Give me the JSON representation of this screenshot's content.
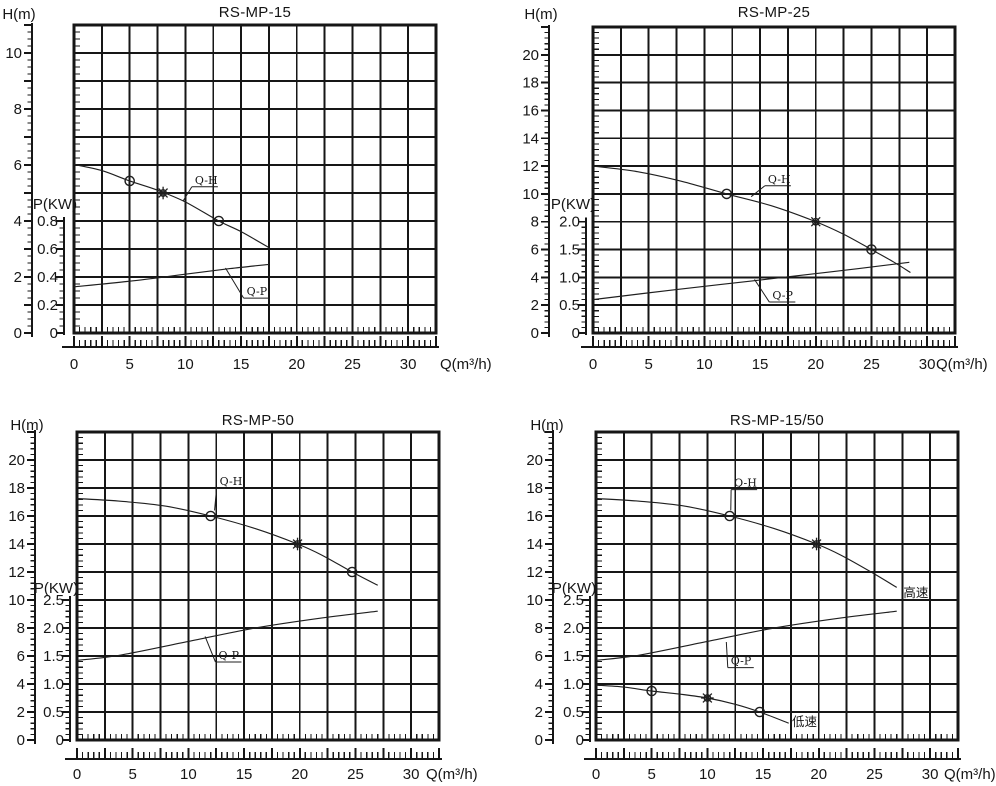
{
  "background": "#ffffff",
  "ink_color": "#161616",
  "curve_color": "#1f1f1f",
  "chart_data": [
    {
      "type": "line",
      "title": "RS-MP-15",
      "x_axis": {
        "label": "Q(m³/h)",
        "min": 0,
        "max": 32.5,
        "grid_step": 2.5,
        "minor_step": 0.5,
        "label_step": 5,
        "tick_labels": [
          "0",
          "5",
          "10",
          "15",
          "20",
          "25",
          "30"
        ]
      },
      "h_axis": {
        "label": "H(m)",
        "min": 0,
        "max": 11,
        "grid_step": 1,
        "minor_divs": 4,
        "label_step": 2,
        "tick_labels": [
          "0",
          "2",
          "4",
          "6",
          "8",
          "10"
        ]
      },
      "p_axis": {
        "label": "P(KW)",
        "min": 0,
        "max": 0.8,
        "label_step": 0.2,
        "minor_divs": 4,
        "h_per_unit": 5,
        "tick_labels": [
          "0",
          "0.2",
          "0.4",
          "0.6",
          "0.8"
        ]
      },
      "series": [
        {
          "name": "Q-H",
          "y_axis": "h",
          "points": [
            [
              0,
              6.02
            ],
            [
              2.5,
              5.8
            ],
            [
              5,
              5.43
            ],
            [
              7.5,
              5.1
            ],
            [
              10,
              4.68
            ],
            [
              13,
              4.0
            ],
            [
              15,
              3.62
            ],
            [
              17.5,
              3.05
            ]
          ],
          "markers": [
            {
              "shape": "circle",
              "x": 5,
              "y": 5.43
            },
            {
              "shape": "star",
              "x": 8,
              "y": 5.0
            },
            {
              "shape": "circle",
              "x": 13,
              "y": 4.0
            }
          ]
        },
        {
          "name": "Q-P",
          "y_axis": "p",
          "points": [
            [
              0,
              0.33
            ],
            [
              5,
              0.37
            ],
            [
              10,
              0.42
            ],
            [
              14,
              0.46
            ],
            [
              17.5,
              0.49
            ]
          ],
          "markers": []
        }
      ],
      "annotations": [
        {
          "text": "Q-H",
          "q": 10.85,
          "h": 5.33,
          "align": "bl",
          "underline": true,
          "leader": {
            "q": 9.8,
            "h": 4.72
          }
        },
        {
          "text": "Q-P",
          "q": 15.5,
          "h": 1.71,
          "align": "tl",
          "underline": true,
          "leader": {
            "q": 13.6,
            "h": 2.32
          }
        }
      ]
    },
    {
      "type": "line",
      "title": "RS-MP-25",
      "x_axis": {
        "label": "Q(m³/h)",
        "min": 0,
        "max": 32.5,
        "grid_step": 2.5,
        "minor_step": 0.5,
        "label_step": 5,
        "tick_labels": [
          "0",
          "5",
          "10",
          "15",
          "20",
          "25",
          "30"
        ]
      },
      "h_axis": {
        "label": "H(m)",
        "min": 0,
        "max": 22,
        "grid_step": 2,
        "minor_divs": 5,
        "label_step": 2,
        "tick_labels": [
          "0",
          "2",
          "4",
          "6",
          "8",
          "10",
          "12",
          "14",
          "16",
          "18",
          "20"
        ]
      },
      "p_axis": {
        "label": "P(KW)",
        "min": 0,
        "max": 2.0,
        "label_step": 0.5,
        "minor_divs": 5,
        "h_per_unit": 4,
        "tick_labels": [
          "0",
          "0.5",
          "1.0",
          "1.5",
          "2.0"
        ]
      },
      "series": [
        {
          "name": "Q-H",
          "y_axis": "h",
          "points": [
            [
              0,
              12.0
            ],
            [
              4,
              11.6
            ],
            [
              8,
              10.9
            ],
            [
              12,
              10.0
            ],
            [
              16,
              9.15
            ],
            [
              20,
              8.0
            ],
            [
              22.5,
              7.1
            ],
            [
              25,
              6.0
            ],
            [
              27,
              5.1
            ],
            [
              28.5,
              4.35
            ]
          ],
          "markers": [
            {
              "shape": "circle",
              "x": 12,
              "y": 10.0
            },
            {
              "shape": "star",
              "x": 20,
              "y": 8.0
            },
            {
              "shape": "circle",
              "x": 25,
              "y": 6.0
            }
          ]
        },
        {
          "name": "Q-P",
          "y_axis": "p",
          "points": [
            [
              0,
              0.6
            ],
            [
              7,
              0.77
            ],
            [
              14,
              0.93
            ],
            [
              21,
              1.09
            ],
            [
              28.4,
              1.27
            ]
          ],
          "markers": []
        }
      ],
      "annotations": [
        {
          "text": "Q-H",
          "q": 15.7,
          "h": 10.8,
          "align": "bl",
          "underline": true,
          "leader": {
            "q": 14.2,
            "h": 9.8
          }
        },
        {
          "text": "Q-P",
          "q": 16.1,
          "h": 3.16,
          "align": "tl",
          "underline": true,
          "leader": {
            "q": 14.5,
            "h": 3.85
          }
        }
      ]
    },
    {
      "type": "line",
      "title": "RS-MP-50",
      "x_axis": {
        "label": "Q(m³/h)",
        "min": 0,
        "max": 32.5,
        "grid_step": 2.5,
        "minor_step": 0.5,
        "label_step": 5,
        "tick_labels": [
          "0",
          "5",
          "10",
          "15",
          "20",
          "25",
          "30"
        ]
      },
      "h_axis": {
        "label": "H(m)",
        "min": 0,
        "max": 22,
        "grid_step": 2,
        "minor_divs": 5,
        "label_step": 2,
        "tick_labels": [
          "0",
          "2",
          "4",
          "6",
          "8",
          "10",
          "12",
          "14",
          "16",
          "18",
          "20"
        ]
      },
      "p_axis": {
        "label": "P(KW)",
        "min": 0,
        "max": 2.5,
        "label_step": 0.5,
        "minor_divs": 5,
        "h_per_unit": 4,
        "tick_labels": [
          "0",
          "0.5",
          "1.0",
          "1.5",
          "2.0",
          "2.5"
        ]
      },
      "series": [
        {
          "name": "Q-H",
          "y_axis": "h",
          "points": [
            [
              0,
              17.25
            ],
            [
              4,
              17.05
            ],
            [
              8,
              16.7
            ],
            [
              12,
              16.0
            ],
            [
              16,
              15.1
            ],
            [
              19.8,
              14.0
            ],
            [
              22,
              13.2
            ],
            [
              24.7,
              12.0
            ],
            [
              27,
              11.05
            ]
          ],
          "markers": [
            {
              "shape": "circle",
              "x": 12,
              "y": 16.0
            },
            {
              "shape": "star",
              "x": 19.8,
              "y": 14.0
            },
            {
              "shape": "circle",
              "x": 24.7,
              "y": 12.0
            }
          ]
        },
        {
          "name": "Q-P",
          "y_axis": "p",
          "points": [
            [
              0,
              1.42
            ],
            [
              4,
              1.52
            ],
            [
              10,
              1.76
            ],
            [
              16,
              2.0
            ],
            [
              22,
              2.18
            ],
            [
              27,
              2.3
            ]
          ],
          "markers": []
        }
      ],
      "annotations": [
        {
          "text": "Q-H",
          "q": 12.8,
          "h": 18.2,
          "align": "bl",
          "underline": true,
          "leader": {
            "q": 12.35,
            "h": 16.4
          }
        },
        {
          "text": "Q-P",
          "q": 12.7,
          "h": 6.5,
          "align": "tl",
          "underline": true,
          "leader": {
            "q": 11.5,
            "h": 7.4
          }
        }
      ]
    },
    {
      "type": "line",
      "title": "RS-MP-15/50",
      "x_axis": {
        "label": "Q(m³/h)",
        "min": 0,
        "max": 32.5,
        "grid_step": 2.5,
        "minor_step": 0.5,
        "label_step": 5,
        "tick_labels": [
          "0",
          "5",
          "10",
          "15",
          "20",
          "25",
          "30"
        ]
      },
      "h_axis": {
        "label": "H(m)",
        "min": 0,
        "max": 22,
        "grid_step": 2,
        "minor_divs": 5,
        "label_step": 2,
        "tick_labels": [
          "0",
          "2",
          "4",
          "6",
          "8",
          "10",
          "12",
          "14",
          "16",
          "18",
          "20"
        ]
      },
      "p_axis": {
        "label": "P(KW)",
        "min": 0,
        "max": 2.5,
        "label_step": 0.5,
        "minor_divs": 5,
        "h_per_unit": 4,
        "tick_labels": [
          "0",
          "0.5",
          "1.0",
          "1.5",
          "2.0",
          "2.5"
        ]
      },
      "series": [
        {
          "name": "Q-H high-speed",
          "y_axis": "h",
          "points": [
            [
              0,
              17.25
            ],
            [
              4,
              17.05
            ],
            [
              8,
              16.7
            ],
            [
              12,
              16.0
            ],
            [
              16,
              15.1
            ],
            [
              19.8,
              14.0
            ],
            [
              22,
              13.2
            ],
            [
              24.7,
              12.0
            ],
            [
              27,
              10.9
            ]
          ],
          "markers": [
            {
              "shape": "circle",
              "x": 12,
              "y": 16.0
            },
            {
              "shape": "star",
              "x": 19.8,
              "y": 14.0
            }
          ]
        },
        {
          "name": "Q-P",
          "y_axis": "p",
          "points": [
            [
              0,
              1.42
            ],
            [
              4,
              1.52
            ],
            [
              10,
              1.76
            ],
            [
              16,
              2.0
            ],
            [
              22,
              2.18
            ],
            [
              27,
              2.3
            ]
          ],
          "markers": []
        },
        {
          "name": "Q-H low-speed",
          "y_axis": "h",
          "points": [
            [
              0,
              3.92
            ],
            [
              2.5,
              3.78
            ],
            [
              5,
              3.5
            ],
            [
              7.5,
              3.28
            ],
            [
              10,
              3.0
            ],
            [
              12.5,
              2.55
            ],
            [
              14.7,
              2.0
            ],
            [
              17.3,
              1.2
            ]
          ],
          "markers": [
            {
              "shape": "circle",
              "x": 5,
              "y": 3.5
            },
            {
              "shape": "star",
              "x": 10,
              "y": 3.0
            },
            {
              "shape": "circle",
              "x": 14.7,
              "y": 2.0
            }
          ]
        }
      ],
      "annotations": [
        {
          "text": "Q-H",
          "q": 12.4,
          "h": 18.1,
          "align": "bl",
          "underline": true,
          "leader": {
            "q": 12.1,
            "h": 16.4
          }
        },
        {
          "text": "Q-P",
          "q": 12.1,
          "h": 6.1,
          "align": "tl",
          "underline": true,
          "leader": {
            "q": 11.7,
            "h": 7.0
          }
        },
        {
          "text": "高速",
          "q": 27.6,
          "h": 10.5,
          "align": "lm"
        },
        {
          "text": "低速",
          "q": 17.6,
          "h": 1.27,
          "align": "lm"
        }
      ]
    }
  ]
}
